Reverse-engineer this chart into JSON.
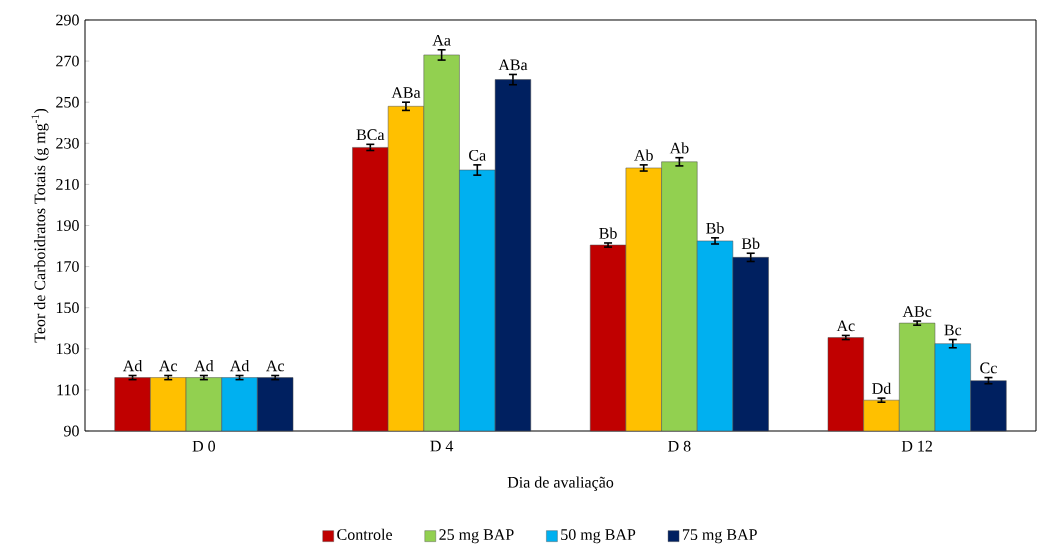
{
  "chart_data": {
    "type": "bar",
    "xlabel": "Dia de avaliação",
    "ylabel": "Teor de Carboidratos Totais (g mg$^{-1}$)",
    "categories": [
      "D 0",
      "D 4",
      "D 8",
      "D 12"
    ],
    "ylim": [
      90,
      290
    ],
    "yticks": [
      90,
      110,
      130,
      150,
      170,
      190,
      210,
      230,
      250,
      270,
      290
    ],
    "legend": "bottom",
    "grid": false,
    "series": [
      {
        "name": "Controle",
        "color": "#c00000",
        "values": [
          116,
          228,
          180.5,
          135.5
        ],
        "errors": [
          1,
          1.5,
          1,
          1
        ],
        "value_labels": [
          "Ad",
          "BCa",
          "Bb",
          "Ac"
        ]
      },
      {
        "color": "#ffc000",
        "values": [
          116,
          248,
          218,
          105
        ],
        "errors": [
          1,
          2,
          1.5,
          1
        ],
        "value_labels": [
          "Ac",
          "ABa",
          "Ab",
          "Dd"
        ]
      },
      {
        "name": "25 mg BAP",
        "color": "#92d050",
        "values": [
          116,
          273,
          221,
          142.5
        ],
        "errors": [
          1,
          2.5,
          2,
          1
        ],
        "value_labels": [
          "Ad",
          "Aa",
          "Ab",
          "ABc"
        ]
      },
      {
        "name": "50 mg BAP",
        "color": "#00b0f0",
        "values": [
          116,
          217,
          182.5,
          132.5
        ],
        "errors": [
          1,
          2.5,
          1.5,
          2
        ],
        "value_labels": [
          "Ad",
          "Ca",
          "Bb",
          "Bc"
        ]
      },
      {
        "name": "75 mg BAP",
        "color": "#002060",
        "values": [
          116,
          261,
          174.5,
          114.5
        ],
        "errors": [
          1,
          2.5,
          2,
          1.5
        ],
        "value_labels": [
          "Ac",
          "ABa",
          "Bb",
          "Cc"
        ]
      }
    ]
  }
}
